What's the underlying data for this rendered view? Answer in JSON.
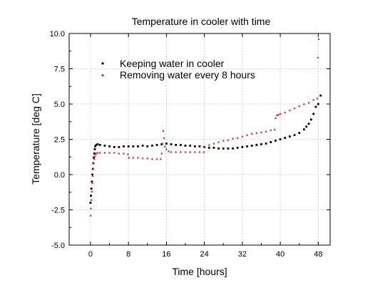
{
  "chart_data": {
    "type": "scatter",
    "title": "Temperature in cooler with time",
    "xlabel": "Time [hours]",
    "ylabel": "Temperature [deg C]",
    "xlim": [
      -4.5,
      50.5
    ],
    "ylim": [
      -5.0,
      10.0
    ],
    "xticks": [
      0,
      8,
      16,
      24,
      32,
      40,
      48
    ],
    "xtick_labels": [
      "0",
      "8",
      "16",
      "24",
      "32",
      "40",
      "48"
    ],
    "yticks": [
      -5.0,
      -2.5,
      0.0,
      2.5,
      5.0,
      7.5,
      10.0
    ],
    "ytick_labels": [
      "-5.0",
      "-2.5",
      "0.0",
      "2.5",
      "5.0",
      "7.5",
      "10.0"
    ],
    "grid": true,
    "legend_position": "top-left",
    "series": [
      {
        "name": "Keeping water in cooler",
        "color": "#000000",
        "marker": "square",
        "x": [
          0,
          0.1,
          0.2,
          0.3,
          0.4,
          0.5,
          0.6,
          0.7,
          0.8,
          0.9,
          1.0,
          1.2,
          1.5,
          2,
          3,
          4,
          5,
          6,
          7,
          8,
          9,
          10,
          11,
          12,
          13,
          14,
          15,
          16,
          17,
          18,
          19,
          20,
          21,
          22,
          23,
          24,
          25,
          26,
          27,
          28,
          29,
          30,
          31,
          32,
          33,
          34,
          35,
          36,
          37,
          38,
          39,
          40,
          41,
          42,
          43,
          44,
          45,
          45.5,
          46,
          46.5,
          47,
          47.5,
          48,
          48.5
        ],
        "y": [
          -2.0,
          -1.5,
          -1.0,
          -0.5,
          0.0,
          0.4,
          0.8,
          1.2,
          1.5,
          1.8,
          2.0,
          2.1,
          2.15,
          2.1,
          2.05,
          2.0,
          1.95,
          1.95,
          2.0,
          2.0,
          2.0,
          2.0,
          2.05,
          2.0,
          2.05,
          2.1,
          2.15,
          2.2,
          2.15,
          2.1,
          2.1,
          2.05,
          2.05,
          2.0,
          2.0,
          1.95,
          1.9,
          1.9,
          1.85,
          1.85,
          1.85,
          1.85,
          1.9,
          1.95,
          2.0,
          2.05,
          2.1,
          2.15,
          2.2,
          2.3,
          2.4,
          2.5,
          2.6,
          2.7,
          2.8,
          2.95,
          3.2,
          3.4,
          3.6,
          3.9,
          4.3,
          4.8,
          5.0,
          5.6
        ]
      },
      {
        "name": "Removing water every 8 hours",
        "color": "#e0201b",
        "marker": "triangle",
        "x": [
          0,
          0.1,
          0.2,
          0.3,
          0.4,
          0.5,
          0.6,
          0.7,
          0.8,
          0.9,
          1.0,
          1.2,
          1.5,
          2,
          3,
          4,
          5,
          6,
          7,
          7.9,
          8.1,
          9,
          10,
          11,
          12,
          13,
          14,
          14.8,
          15.0,
          15.2,
          15.35,
          15.5,
          15.7,
          16.0,
          16.5,
          17,
          18,
          19,
          20,
          21,
          22,
          23,
          23.9,
          24.1,
          25,
          26,
          27,
          28,
          29,
          30,
          31,
          32,
          33,
          34,
          35,
          36,
          37,
          38,
          38.8,
          39.0,
          39.3,
          39.6,
          40,
          41,
          42,
          43,
          44,
          45,
          46,
          47,
          47.8,
          47.95,
          48.1
        ],
        "y": [
          -2.9,
          -2.4,
          -1.8,
          -1.2,
          -0.6,
          -0.1,
          0.4,
          0.8,
          1.1,
          1.3,
          1.45,
          1.5,
          1.55,
          1.55,
          1.55,
          1.55,
          1.55,
          1.5,
          1.5,
          1.45,
          1.2,
          1.2,
          1.2,
          1.15,
          1.15,
          1.1,
          1.1,
          1.1,
          1.5,
          2.2,
          3.1,
          2.6,
          2.0,
          1.8,
          1.65,
          1.6,
          1.6,
          1.6,
          1.6,
          1.6,
          1.6,
          1.6,
          1.6,
          1.95,
          2.1,
          2.2,
          2.3,
          2.4,
          2.45,
          2.55,
          2.6,
          2.7,
          2.8,
          2.9,
          2.95,
          3.0,
          3.05,
          3.15,
          3.2,
          4.0,
          4.2,
          4.25,
          4.3,
          4.4,
          4.55,
          4.7,
          4.85,
          5.0,
          5.1,
          5.3,
          5.4,
          8.3,
          9.6
        ]
      }
    ]
  }
}
